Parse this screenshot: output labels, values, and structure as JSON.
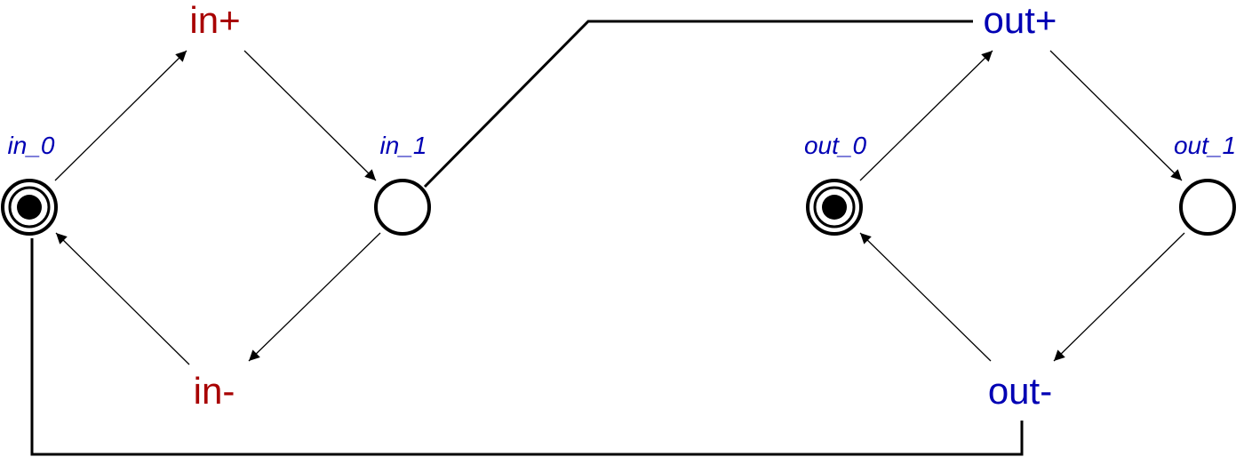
{
  "colors": {
    "input_signal": "#a80000",
    "output_signal": "#0000b4",
    "place_label": "#0000b4",
    "arc": "#000000",
    "place_stroke": "#000000",
    "token": "#000000",
    "background": "#ffffff"
  },
  "transitions": {
    "in_plus": "in+",
    "in_minus": "in-",
    "out_plus": "out+",
    "out_minus": "out-"
  },
  "places": {
    "in_0": {
      "label": "in_0",
      "marked": true
    },
    "in_1": {
      "label": "in_1",
      "marked": false
    },
    "out_0": {
      "label": "out_0",
      "marked": true
    },
    "out_1": {
      "label": "out_1",
      "marked": false
    }
  }
}
